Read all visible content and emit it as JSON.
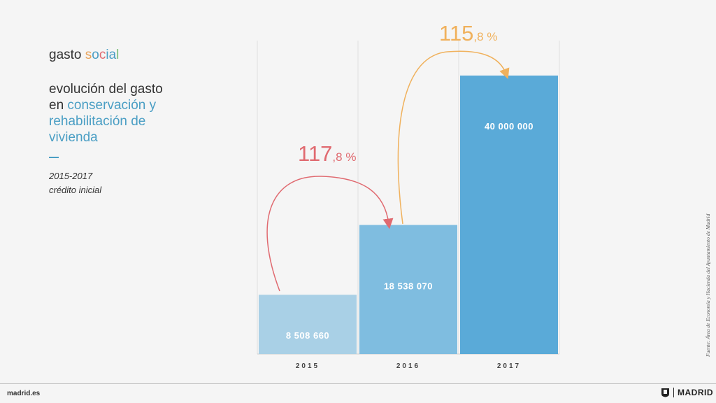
{
  "header": {
    "title_plain": "gasto ",
    "title_accent": [
      {
        "ch": "s",
        "color": "#e8a35a"
      },
      {
        "ch": "o",
        "color": "#4a9ec4"
      },
      {
        "ch": "c",
        "color": "#e06a70"
      },
      {
        "ch": "i",
        "color": "#4a9ec4"
      },
      {
        "ch": "a",
        "color": "#4a9ec4"
      },
      {
        "ch": "l",
        "color": "#7bbf7a"
      }
    ],
    "subtitle_plain_1": "evolución del gasto",
    "subtitle_plain_2": "en ",
    "subtitle_accent": "conservación y rehabilitación de vivienda",
    "dash": "—",
    "period": "2015-2017",
    "credit_label": "crédito inicial"
  },
  "chart_data": {
    "type": "bar",
    "categories": [
      "2015",
      "2016",
      "2017"
    ],
    "values": [
      8508660,
      18538070,
      40000000
    ],
    "value_labels": [
      "8 508 660",
      "18 538 070",
      "40 000 000"
    ],
    "colors": [
      "#a9d0e6",
      "#7fbde0",
      "#5aaad8"
    ],
    "annotations": [
      {
        "from": "2015",
        "to": "2016",
        "big": "117",
        "small": ",8 %",
        "color": "#e06a70"
      },
      {
        "from": "2016",
        "to": "2017",
        "big": "115",
        "small": ",8 %",
        "color": "#f0b15c"
      }
    ],
    "ylim": [
      0,
      40000000
    ],
    "grid": true
  },
  "source": "Fuente: Área de Economía y Hacienda del Ayuntamiento de Madrid",
  "footer": {
    "site": "madrid.es",
    "logo_text": "MADRID",
    "logo_icon": "madrid-crest-icon"
  }
}
